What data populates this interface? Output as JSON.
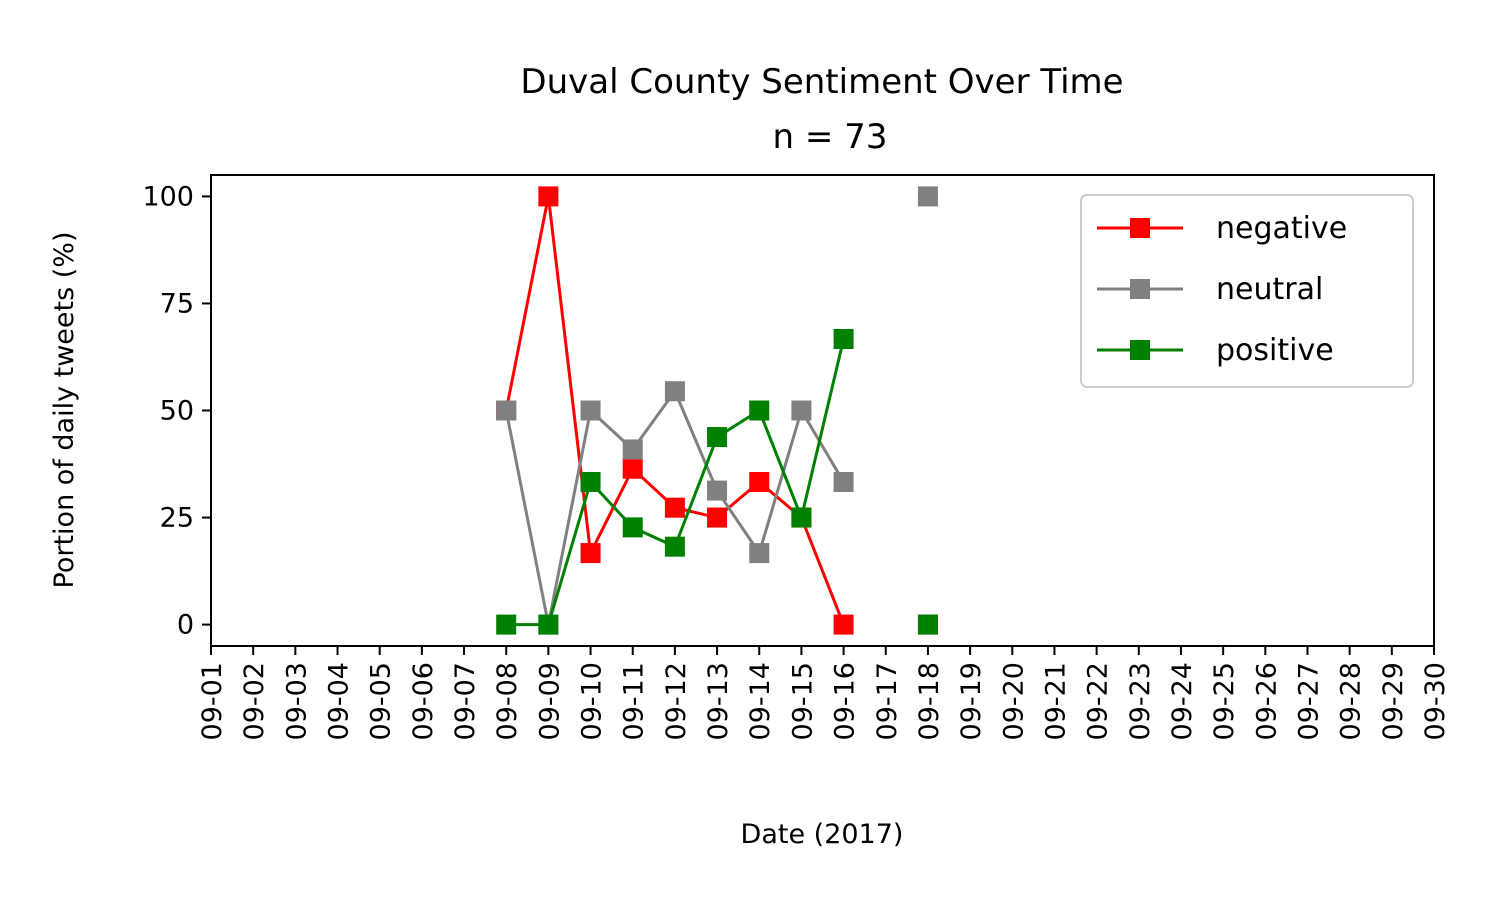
{
  "chart_data": {
    "type": "line",
    "title": "Duval County Sentiment Over Time",
    "subtitle": "n = 73",
    "xlabel": "Date (2017)",
    "ylabel": "Portion of daily tweets (%)",
    "x_ticks": [
      "09-01",
      "09-02",
      "09-03",
      "09-04",
      "09-05",
      "09-06",
      "09-07",
      "09-08",
      "09-09",
      "09-10",
      "09-11",
      "09-12",
      "09-13",
      "09-14",
      "09-15",
      "09-16",
      "09-17",
      "09-18",
      "09-19",
      "09-20",
      "09-21",
      "09-22",
      "09-23",
      "09-24",
      "09-25",
      "09-26",
      "09-27",
      "09-28",
      "09-29",
      "09-30"
    ],
    "y_ticks": [
      0,
      25,
      50,
      75,
      100
    ],
    "ylim": [
      -5,
      105
    ],
    "grid": false,
    "legend_position": "top-right",
    "marker": "square",
    "series": [
      {
        "name": "negative",
        "color": "#ff0000",
        "points": [
          {
            "x": "09-08",
            "y": 50
          },
          {
            "x": "09-09",
            "y": 100
          },
          {
            "x": "09-10",
            "y": 16.7
          },
          {
            "x": "09-11",
            "y": 36.4
          },
          {
            "x": "09-12",
            "y": 27.3
          },
          {
            "x": "09-13",
            "y": 25
          },
          {
            "x": "09-14",
            "y": 33.3
          },
          {
            "x": "09-15",
            "y": 25
          },
          {
            "x": "09-16",
            "y": 0
          },
          {
            "x": "09-18",
            "y": 0
          }
        ]
      },
      {
        "name": "neutral",
        "color": "#808080",
        "points": [
          {
            "x": "09-08",
            "y": 50
          },
          {
            "x": "09-09",
            "y": 0
          },
          {
            "x": "09-10",
            "y": 50
          },
          {
            "x": "09-11",
            "y": 40.9
          },
          {
            "x": "09-12",
            "y": 54.5
          },
          {
            "x": "09-13",
            "y": 31.3
          },
          {
            "x": "09-14",
            "y": 16.7
          },
          {
            "x": "09-15",
            "y": 50
          },
          {
            "x": "09-16",
            "y": 33.3
          },
          {
            "x": "09-18",
            "y": 100
          }
        ]
      },
      {
        "name": "positive",
        "color": "#008000",
        "points": [
          {
            "x": "09-08",
            "y": 0
          },
          {
            "x": "09-09",
            "y": 0
          },
          {
            "x": "09-10",
            "y": 33.3
          },
          {
            "x": "09-11",
            "y": 22.7
          },
          {
            "x": "09-12",
            "y": 18.2
          },
          {
            "x": "09-13",
            "y": 43.8
          },
          {
            "x": "09-14",
            "y": 50
          },
          {
            "x": "09-15",
            "y": 25
          },
          {
            "x": "09-16",
            "y": 66.7
          },
          {
            "x": "09-18",
            "y": 0
          }
        ]
      }
    ]
  }
}
